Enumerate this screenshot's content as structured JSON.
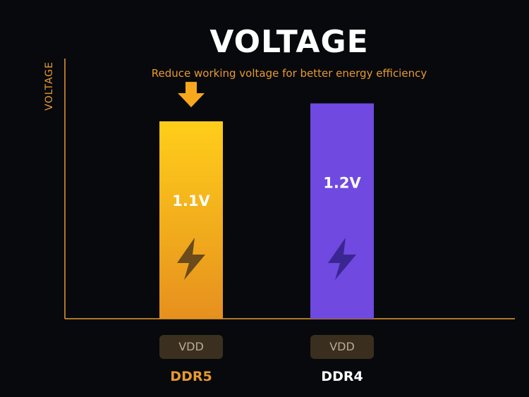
{
  "chart_data": {
    "type": "bar",
    "title": "VOLTAGE",
    "subtitle": "Reduce working voltage for better energy efficiency",
    "ylabel": "VOLTAGE",
    "xlabel": "",
    "categories": [
      "DDR5",
      "DDR4"
    ],
    "values": [
      1.1,
      1.2
    ],
    "value_labels": [
      "1.1V",
      "1.2V"
    ],
    "tick_label": "VDD",
    "grid": false,
    "ylim": [
      0,
      1.45
    ],
    "colors": {
      "DDR5_top": "#ffce1a",
      "DDR5_bottom": "#e6901e",
      "DDR4": "#6f49e0",
      "axis": "#e89a2e",
      "ddr5_label": "#e89a2e",
      "ddr4_label": "#ffffff",
      "arrow": "#f7a81c",
      "bolt_ddr5": "#6b4a1c",
      "bolt_ddr4": "#3a2691",
      "vdd_ddr5_bg": "#3b3020",
      "vdd_ddr4_bg": "#3a2e1f"
    },
    "icons": [
      "down-arrow-icon",
      "lightning-bolt-icon"
    ]
  }
}
